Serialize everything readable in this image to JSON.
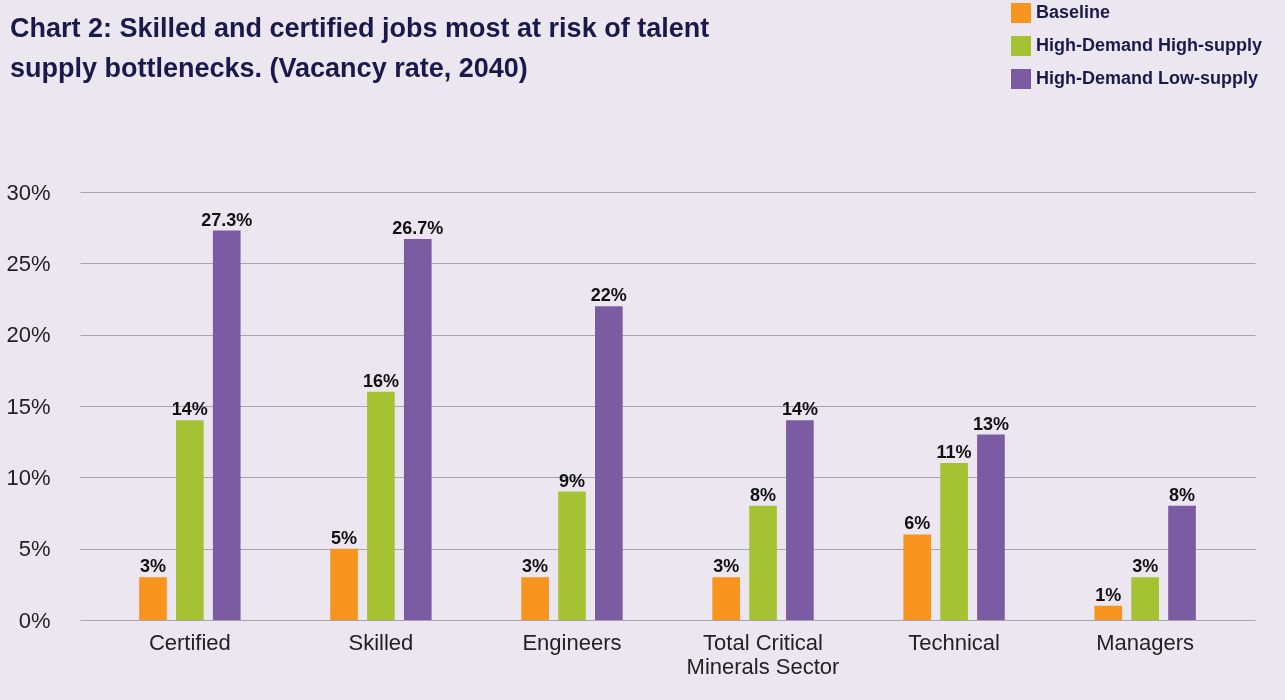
{
  "chart_data": {
    "type": "bar",
    "title": "Chart 2: Skilled and certified jobs most at risk of talent supply bottlenecks. (Vacancy rate, 2040)",
    "categories": [
      "Certified",
      "Skilled",
      "Engineers",
      "Total Critical Minerals Sector",
      "Technical",
      "Managers"
    ],
    "series": [
      {
        "name": "Baseline",
        "color": "#f7941d",
        "values": [
          3,
          5,
          3,
          3,
          6,
          1
        ],
        "value_labels": [
          "3%",
          "5%",
          "3%",
          "3%",
          "6%",
          "1%"
        ]
      },
      {
        "name": "High-Demand High-supply",
        "color": "#a4c232",
        "values": [
          14,
          16,
          9,
          8,
          11,
          3
        ],
        "value_labels": [
          "14%",
          "16%",
          "9%",
          "8%",
          "11%",
          "3%"
        ]
      },
      {
        "name": "High-Demand Low-supply",
        "color": "#7b5ba1",
        "values": [
          27.3,
          26.7,
          22,
          14,
          13,
          8
        ],
        "value_labels": [
          "27.3%",
          "26.7%",
          "22%",
          "14%",
          "13%",
          "8%"
        ]
      }
    ],
    "ylim": [
      0,
      30
    ],
    "yticks": [
      {
        "value": 0,
        "label": "0%"
      },
      {
        "value": 5,
        "label": "5%"
      },
      {
        "value": 10,
        "label": "10%"
      },
      {
        "value": 15,
        "label": "15%"
      },
      {
        "value": 20,
        "label": "20%"
      },
      {
        "value": 25,
        "label": "25%"
      },
      {
        "value": 30,
        "label": "30%"
      }
    ],
    "grid": "y",
    "legend": "top right"
  }
}
